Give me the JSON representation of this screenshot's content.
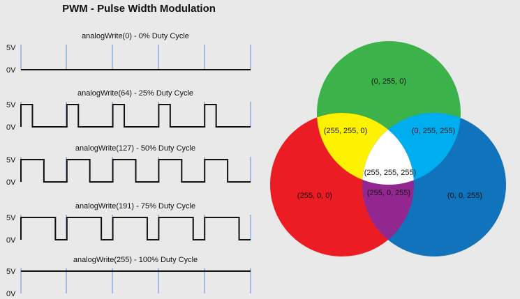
{
  "title": "PWM - Pulse Width Modulation",
  "voltage_high": "5V",
  "voltage_low": "0V",
  "waveforms": [
    {
      "label": "analogWrite(0) - 0% Duty Cycle",
      "duty": 0
    },
    {
      "label": "analogWrite(64) - 25% Duty Cycle",
      "duty": 0.25
    },
    {
      "label": "analogWrite(127) - 50% Duty Cycle",
      "duty": 0.5
    },
    {
      "label": "analogWrite(191) - 75% Duty Cycle",
      "duty": 0.75
    },
    {
      "label": "analogWrite(255) - 100% Duty Cycle",
      "duty": 1
    }
  ],
  "periods": 5,
  "colors": {
    "background": "#e9e9e9",
    "wave": "#111111",
    "period_marker": "#5b8fd6",
    "green": "#3cb24a",
    "red": "#ec1c24",
    "blue": "#1173bb",
    "yellow": "#fff200",
    "cyan": "#00aeef",
    "magenta": "#92278f",
    "white": "#ffffff"
  },
  "venn": {
    "green": "(0, 255, 0)",
    "red": "(255, 0, 0)",
    "blue": "(0, 0, 255)",
    "yellow": "(255, 255, 0)",
    "cyan": "(0, 255, 255)",
    "magenta": "(255, 0, 255)",
    "white": "(255, 255, 255)"
  }
}
